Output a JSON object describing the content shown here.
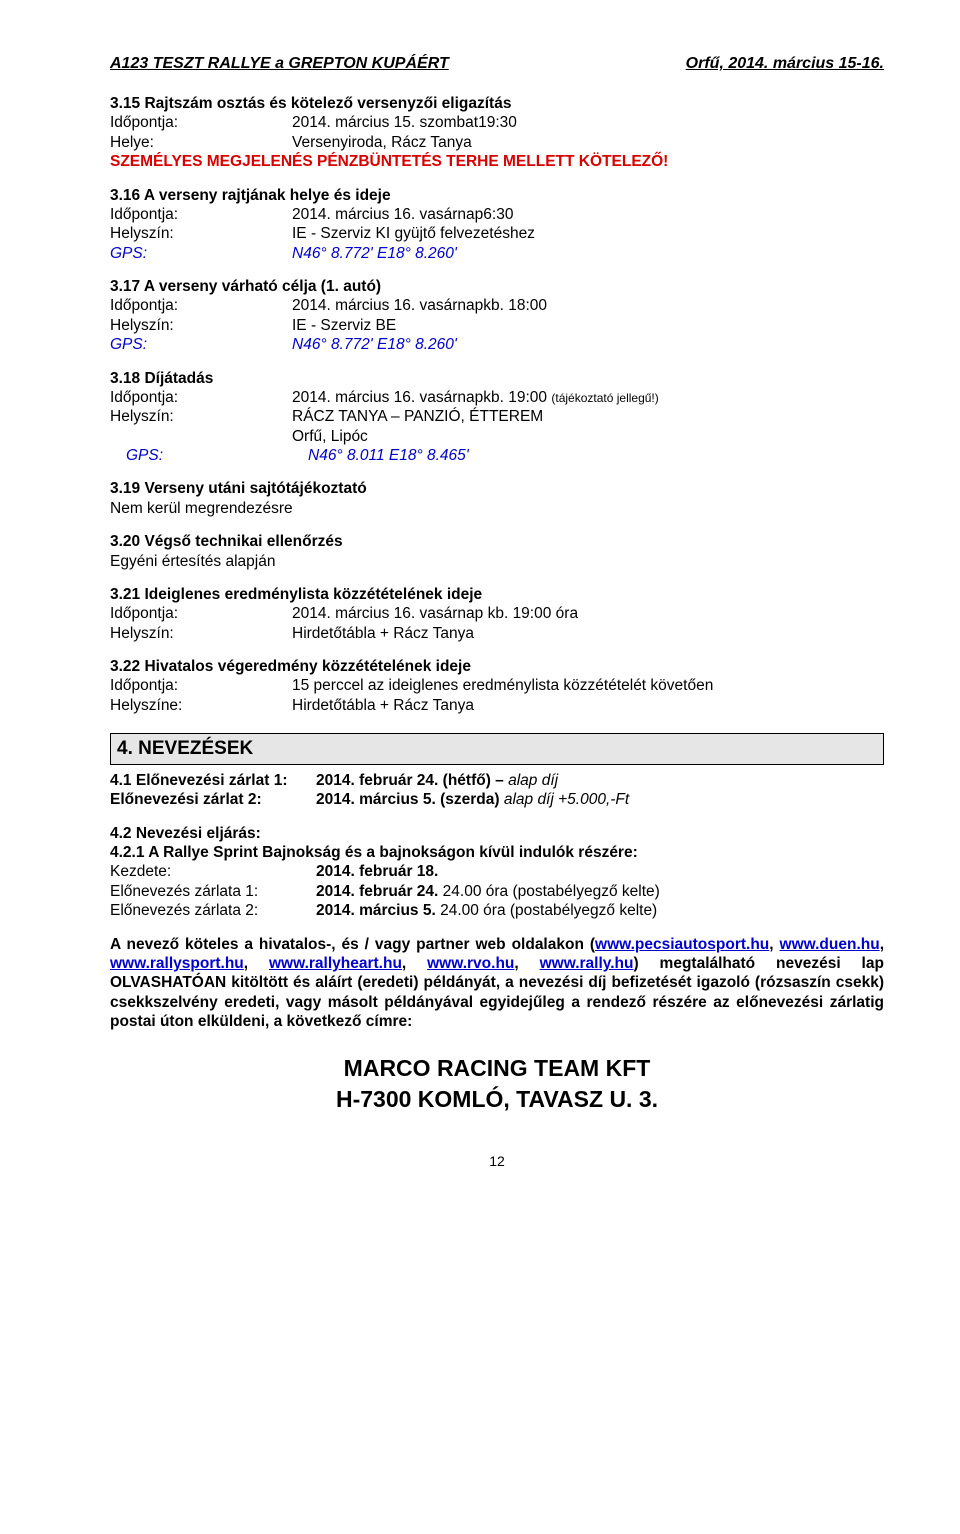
{
  "header": {
    "left": "A123 TESZT RALLYE a GREPTON KUPÁÉRT",
    "right": "Orfű, 2014. március 15-16."
  },
  "s315": {
    "title": "3.15  Rajtszám osztás és kötelező versenyzői eligazítás",
    "r1l": "Időpontja:",
    "r1v": "2014. március 15. szombat",
    "r1t": "19:30",
    "r2l": "Helye:",
    "r2v": "Versenyiroda, Rácz Tanya",
    "warn": "SZEMÉLYES MEGJELENÉS PÉNZBÜNTETÉS TERHE MELLETT KÖTELEZŐ!"
  },
  "s316": {
    "title": "3.16  A verseny rajtjának helye és ideje",
    "r1l": "Időpontja:",
    "r1v": "2014. március 16. vasárnap",
    "r1t": "6:30",
    "r2l": "Helyszín:",
    "r2v": "IE - Szerviz KI gyüjtő felvezetéshez",
    "r3l": "GPS:",
    "r3v": "N46° 8.772' E18° 8.260'"
  },
  "s317": {
    "title": "3.17  A verseny várható célja (1. autó)",
    "r1l": "Időpontja:",
    "r1v": "2014. március 16. vasárnap",
    "r1t": "kb. 18:00",
    "r2l": "Helyszín:",
    "r2v": "IE - Szerviz BE",
    "r3l": "GPS:",
    "r3v": "N46° 8.772' E18° 8.260'"
  },
  "s318": {
    "title": "3.18  Díjátadás",
    "r1l": "Időpontja:",
    "r1v": "2014. március 16. vasárnap",
    "r1t": "kb. 19:00 ",
    "r1s": "(tájékoztató jellegű!)",
    "r2l": "Helyszín:",
    "r2v": "RÁCZ TANYA – PANZIÓ, ÉTTEREM",
    "r2b": "Orfű, Lipóc",
    "r3l": "GPS:",
    "r3v": "N46° 8.011 E18° 8.465'"
  },
  "s319": {
    "title": "3.19  Verseny utáni sajtótájékoztató",
    "line": "Nem kerül megrendezésre"
  },
  "s320": {
    "title": "3.20  Végső technikai ellenőrzés",
    "line": "Egyéni értesítés alapján"
  },
  "s321": {
    "title": "3.21  Ideiglenes eredménylista közzétételének ideje",
    "r1l": "Időpontja:",
    "r1v": "2014. március 16. vasárnap  kb. 19:00 óra",
    "r2l": "Helyszín:",
    "r2v": "Hirdetőtábla + Rácz Tanya"
  },
  "s322": {
    "title": "3.22  Hivatalos végeredmény közzétételének ideje",
    "r1l": "Időpontja:",
    "r1v": "15 perccel az ideiglenes eredménylista közzétételét követően",
    "r2l": "Helyszíne:",
    "r2v": "Hirdetőtábla + Rácz Tanya"
  },
  "banner4": "4.  NEVEZÉSEK",
  "s41": {
    "l1a": "4.1  Előnevezési zárlat 1:",
    "l1b": "2014. február 24. (hétfő) – ",
    "l1c": "alap díj",
    "l2a": "Előnevezési zárlat 2:",
    "l2b": "2014. március 5. (szerda) ",
    "l2c": "alap díj +5.000,-Ft"
  },
  "s42": {
    "t1": "4.2  Nevezési eljárás:",
    "t2": "4.2.1  A Rallye Sprint Bajnokság és a bajnokságon kívül indulók részére:",
    "r1l": "Kezdete:",
    "r1v": "2014. február 18.",
    "r2l": "Előnevezés zárlata 1:",
    "r2v1": "2014. február 24.",
    "r2v2": "  24.00 óra (postabélyegző kelte)",
    "r3l": "Előnevezés zárlata 2:",
    "r3v1": "2014. március 5.",
    "r3v2": "  24.00 óra (postabélyegző kelte)"
  },
  "para": {
    "p1": "A nevező köteles a hivatalos-, és / vagy partner web oldalakon (",
    "u1": "www.pecsiautosport.hu",
    "p2": ", ",
    "u2": "www.duen.hu",
    "p3": ", ",
    "u3": "www.rallysport.hu",
    "p4": ", ",
    "u4": "www.rallyheart.hu",
    "p5": ", ",
    "u5": "www.rvo.hu",
    "p6": ", ",
    "u6": "www.rally.hu",
    "p7": ") megtalálható nevezési lap OLVASHATÓAN kitöltött és aláírt (eredeti) példányát, a nevezési díj befizetését igazoló (rózsaszín csekk) csekkszelvény eredeti, vagy másolt példányával egyidejűleg a rendező részére az előnevezési zárlatig postai úton elküldeni, a következő címre:"
  },
  "addr": {
    "l1": "MARCO RACING TEAM KFT",
    "l2": "H-7300 KOMLÓ, TAVASZ U. 3."
  },
  "pagenum": "12"
}
